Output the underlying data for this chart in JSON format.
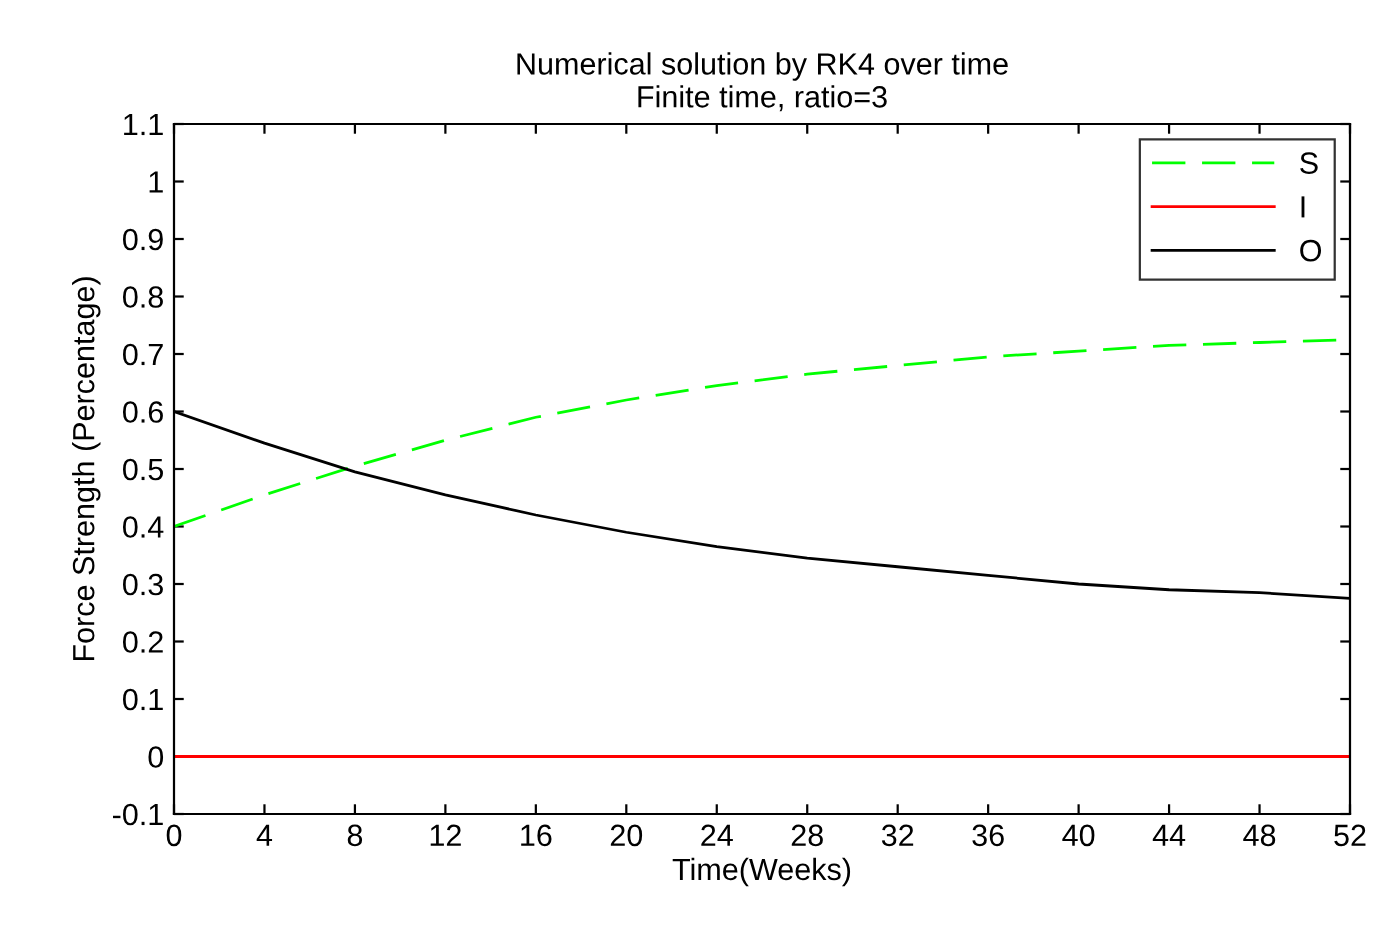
{
  "chart_data": {
    "type": "line",
    "title": "Numerical solution by RK4 over time\nFinite time, ratio=3",
    "xlabel": "Time(Weeks)",
    "ylabel": "Force Strength (Percentage)",
    "x": [
      0,
      4,
      8,
      12,
      16,
      20,
      24,
      28,
      32,
      36,
      40,
      44,
      48,
      52
    ],
    "series": [
      {
        "name": "S",
        "color": "#00ff00",
        "line_style": "dashed",
        "values": [
          0.4,
          0.455,
          0.505,
          0.55,
          0.59,
          0.62,
          0.645,
          0.665,
          0.68,
          0.695,
          0.705,
          0.715,
          0.72,
          0.725
        ]
      },
      {
        "name": "I",
        "color": "#ff0000",
        "values": [
          0,
          0,
          0,
          0,
          0,
          0,
          0,
          0,
          0,
          0,
          0,
          0,
          0,
          0
        ]
      },
      {
        "name": "O",
        "color": "#000000",
        "values": [
          0.6,
          0.545,
          0.495,
          0.455,
          0.42,
          0.39,
          0.365,
          0.345,
          0.33,
          0.315,
          0.3,
          0.29,
          0.285,
          0.275
        ]
      }
    ],
    "xlim": [
      0,
      52
    ],
    "xticks": [
      0,
      4,
      8,
      12,
      16,
      20,
      24,
      28,
      32,
      36,
      40,
      44,
      48,
      52
    ],
    "ylim": [
      -0.1,
      1.1
    ],
    "yticks": [
      {
        "value": -0.1,
        "label": "-0.1"
      },
      0,
      0.1,
      0.2,
      0.3,
      0.4,
      0.5,
      0.6,
      0.7,
      0.8,
      0.9,
      1,
      1.1
    ],
    "legend": "top right",
    "grid": false
  }
}
